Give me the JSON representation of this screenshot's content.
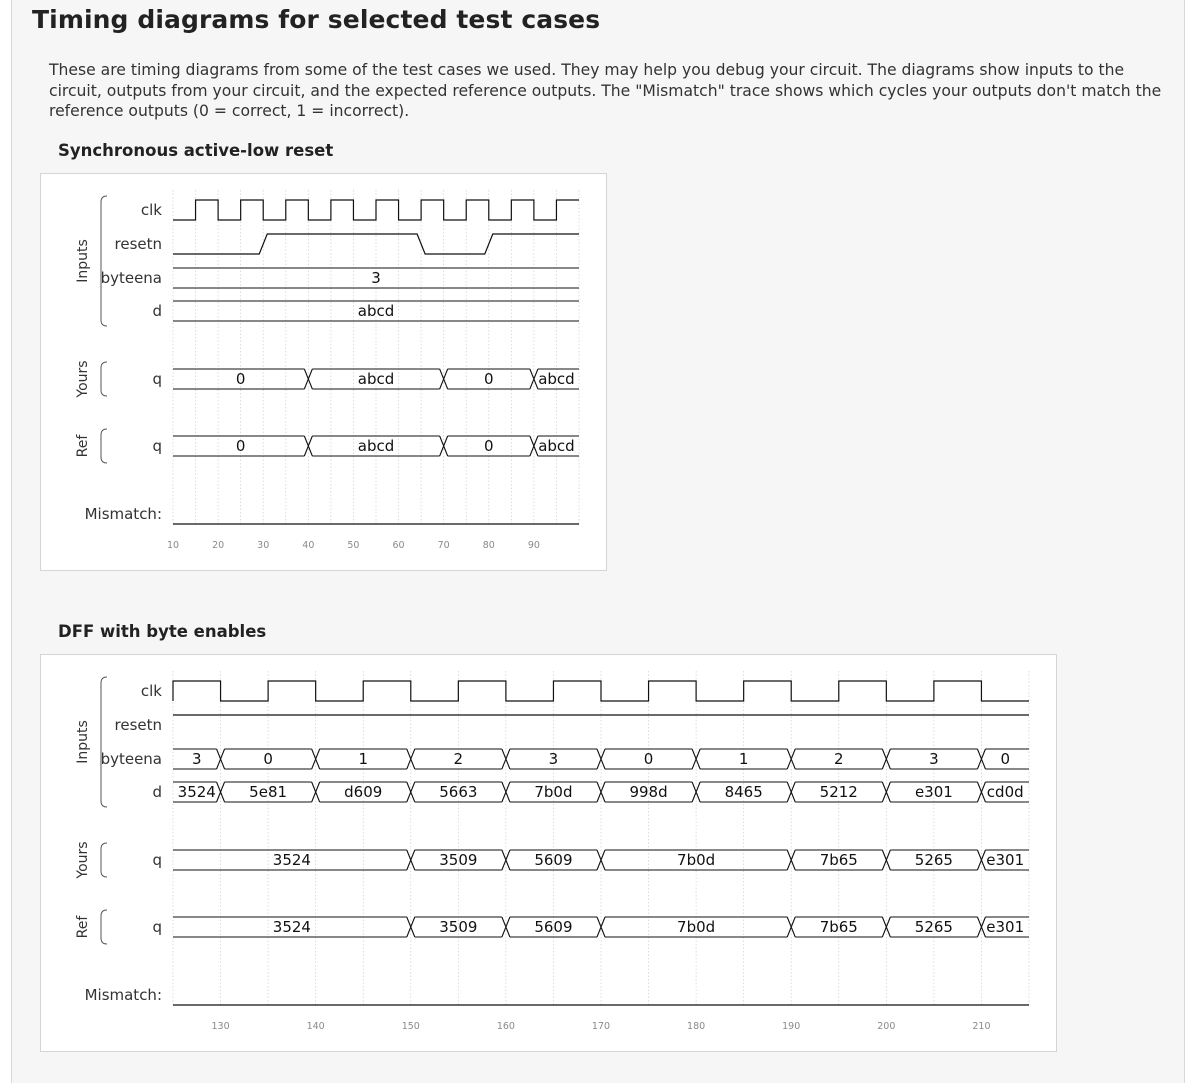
{
  "page_title": "Timing diagrams for selected test cases",
  "intro": "These are timing diagrams from some of the test cases we used. They may help you debug your circuit. The diagrams show inputs to the circuit, outputs from your circuit, and the expected reference outputs. The \"Mismatch\" trace shows which cycles your outputs don't match the reference outputs (0 = correct, 1 = incorrect).",
  "sections": [
    {
      "title": "Synchronous active-low reset",
      "groups": [
        "Inputs",
        "Yours",
        "Ref"
      ],
      "signals": {
        "clk": "clk",
        "resetn": "resetn",
        "byteena": "byteena",
        "d": "d",
        "yours_q": "q",
        "ref_q": "q",
        "mismatch": "Mismatch:"
      },
      "time_axis": {
        "start": 10,
        "end": 100,
        "ticks": [
          "10",
          "20",
          "30",
          "40",
          "50",
          "60",
          "70",
          "80",
          "90"
        ]
      },
      "waves": {
        "clk": {
          "type": "clock",
          "first_rise": 15,
          "period": 10,
          "initial": 0
        },
        "resetn": {
          "type": "bit",
          "changes": [
            [
              10,
              0
            ],
            [
              30,
              1
            ],
            [
              65,
              0
            ],
            [
              80,
              1
            ]
          ]
        },
        "byteena": {
          "type": "bus",
          "segments": [
            {
              "from": 10,
              "to": 100,
              "value": "3"
            }
          ]
        },
        "d": {
          "type": "bus",
          "segments": [
            {
              "from": 10,
              "to": 100,
              "value": "abcd"
            }
          ]
        },
        "yours_q": {
          "type": "bus",
          "segments": [
            {
              "from": 10,
              "to": 40,
              "value": "0"
            },
            {
              "from": 40,
              "to": 70,
              "value": "abcd"
            },
            {
              "from": 70,
              "to": 90,
              "value": "0"
            },
            {
              "from": 90,
              "to": 100,
              "value": "abcd"
            }
          ]
        },
        "ref_q": {
          "type": "bus",
          "segments": [
            {
              "from": 10,
              "to": 40,
              "value": "0"
            },
            {
              "from": 40,
              "to": 70,
              "value": "abcd"
            },
            {
              "from": 70,
              "to": 90,
              "value": "0"
            },
            {
              "from": 90,
              "to": 100,
              "value": "abcd"
            }
          ]
        },
        "mismatch": {
          "type": "bit",
          "changes": [
            [
              10,
              0
            ]
          ]
        }
      }
    },
    {
      "title": "DFF with byte enables",
      "groups": [
        "Inputs",
        "Yours",
        "Ref"
      ],
      "signals": {
        "clk": "clk",
        "resetn": "resetn",
        "byteena": "byteena",
        "d": "d",
        "yours_q": "q",
        "ref_q": "q",
        "mismatch": "Mismatch:"
      },
      "time_axis": {
        "start": 125,
        "end": 215,
        "ticks": [
          "130",
          "140",
          "150",
          "160",
          "170",
          "180",
          "190",
          "200",
          "210"
        ]
      },
      "waves": {
        "clk": {
          "type": "clock",
          "first_rise": 125,
          "period": 10,
          "initial": 0
        },
        "resetn": {
          "type": "bit",
          "changes": [
            [
              125,
              1
            ]
          ]
        },
        "byteena": {
          "type": "bus",
          "segments": [
            {
              "from": 125,
              "to": 130,
              "value": "3"
            },
            {
              "from": 130,
              "to": 140,
              "value": "0"
            },
            {
              "from": 140,
              "to": 150,
              "value": "1"
            },
            {
              "from": 150,
              "to": 160,
              "value": "2"
            },
            {
              "from": 160,
              "to": 170,
              "value": "3"
            },
            {
              "from": 170,
              "to": 180,
              "value": "0"
            },
            {
              "from": 180,
              "to": 190,
              "value": "1"
            },
            {
              "from": 190,
              "to": 200,
              "value": "2"
            },
            {
              "from": 200,
              "to": 210,
              "value": "3"
            },
            {
              "from": 210,
              "to": 220,
              "value": "0"
            }
          ]
        },
        "d": {
          "type": "bus",
          "segments": [
            {
              "from": 125,
              "to": 130,
              "value": "3524"
            },
            {
              "from": 130,
              "to": 140,
              "value": "5e81"
            },
            {
              "from": 140,
              "to": 150,
              "value": "d609"
            },
            {
              "from": 150,
              "to": 160,
              "value": "5663"
            },
            {
              "from": 160,
              "to": 170,
              "value": "7b0d"
            },
            {
              "from": 170,
              "to": 180,
              "value": "998d"
            },
            {
              "from": 180,
              "to": 190,
              "value": "8465"
            },
            {
              "from": 190,
              "to": 200,
              "value": "5212"
            },
            {
              "from": 200,
              "to": 210,
              "value": "e301"
            },
            {
              "from": 210,
              "to": 220,
              "value": "cd0d"
            }
          ]
        },
        "yours_q": {
          "type": "bus",
          "segments": [
            {
              "from": 125,
              "to": 150,
              "value": "3524"
            },
            {
              "from": 150,
              "to": 160,
              "value": "3509"
            },
            {
              "from": 160,
              "to": 170,
              "value": "5609"
            },
            {
              "from": 170,
              "to": 190,
              "value": "7b0d"
            },
            {
              "from": 190,
              "to": 200,
              "value": "7b65"
            },
            {
              "from": 200,
              "to": 210,
              "value": "5265"
            },
            {
              "from": 210,
              "to": 220,
              "value": "e301"
            }
          ]
        },
        "ref_q": {
          "type": "bus",
          "segments": [
            {
              "from": 125,
              "to": 150,
              "value": "3524"
            },
            {
              "from": 150,
              "to": 160,
              "value": "3509"
            },
            {
              "from": 160,
              "to": 170,
              "value": "5609"
            },
            {
              "from": 170,
              "to": 190,
              "value": "7b0d"
            },
            {
              "from": 190,
              "to": 200,
              "value": "7b65"
            },
            {
              "from": 200,
              "to": 210,
              "value": "5265"
            },
            {
              "from": 210,
              "to": 220,
              "value": "e301"
            }
          ]
        },
        "mismatch": {
          "type": "bit",
          "changes": [
            [
              125,
              0
            ]
          ]
        }
      }
    }
  ]
}
